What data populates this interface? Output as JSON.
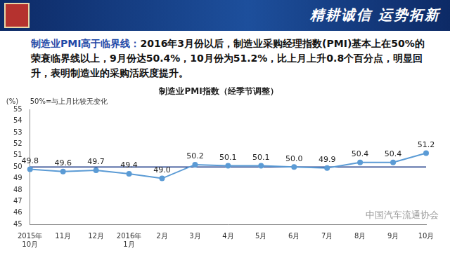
{
  "slide": {
    "banner": "精耕诚信 运势拓新",
    "heading_lead": "制造业PMI高于临界线：",
    "heading_text": "2016年3月份以后，制造业采购经理指数(PMI)基本上在50%的荣衰临界线以上，9月份达50.4%，10月份为51.2%，比上月上升0.8个百分点，明显回升，表明制造业的采购活跃度提升。",
    "watermark": "中国汽车流通协会"
  },
  "chart_data": {
    "type": "line",
    "title": "制造业PMI指数（经季节调整）",
    "y_label": "(%)",
    "annotation": "50%=与上月比较无变化",
    "categories": [
      "2015年10月",
      "11月",
      "12月",
      "2016年1月",
      "2月",
      "3月",
      "4月",
      "5月",
      "6月",
      "7月",
      "8月",
      "9月",
      "10月"
    ],
    "values": [
      49.8,
      49.6,
      49.7,
      49.4,
      49.0,
      50.2,
      50.1,
      50.1,
      50.0,
      49.9,
      50.4,
      50.4,
      51.2
    ],
    "value_labels": [
      "49.8",
      "49.6",
      "49.7",
      "49.4",
      "49.0",
      "50.2",
      "50.1",
      "50.1",
      "50.0",
      "49.9",
      "50.4",
      "50.4",
      "51.2"
    ],
    "reference_line": 50,
    "color": "#5b9bd5",
    "marker": "circle",
    "data_labels": true,
    "grid": false,
    "ylim": [
      45,
      55
    ],
    "yticks": [
      45,
      46,
      47,
      48,
      49,
      50,
      51,
      52,
      53,
      54,
      55
    ]
  }
}
